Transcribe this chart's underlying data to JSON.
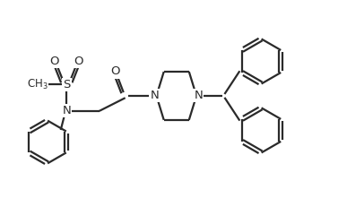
{
  "bg_color": "#ffffff",
  "line_color": "#2a2a2a",
  "line_width": 1.6,
  "fig_width": 3.87,
  "fig_height": 2.5,
  "dpi": 100,
  "xlim": [
    0,
    10
  ],
  "ylim": [
    0,
    6.5
  ]
}
